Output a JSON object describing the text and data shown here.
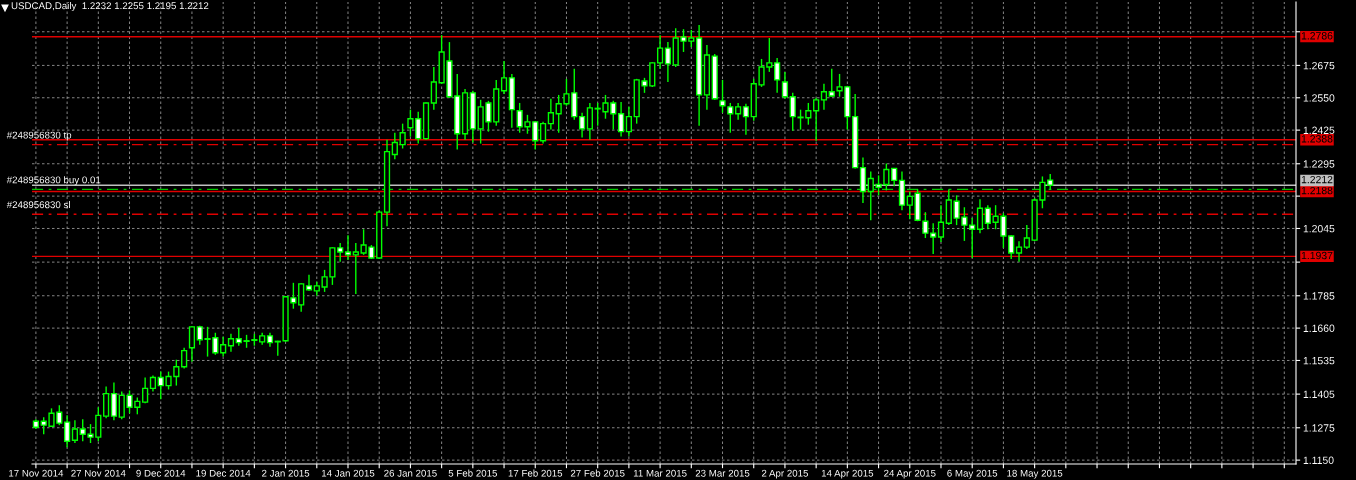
{
  "chart_data": {
    "type": "candlestick",
    "title": "USDCAD,Daily  1.2232 1.2255 1.2195 1.2212",
    "categories": [
      "17 Nov 2014",
      null,
      null,
      null,
      null,
      null,
      null,
      null,
      "27 Nov 2014",
      null,
      null,
      null,
      null,
      null,
      null,
      null,
      "9 Dec 2014",
      null,
      null,
      null,
      null,
      null,
      null,
      null,
      "19 Dec 2014",
      null,
      null,
      null,
      null,
      null,
      null,
      null,
      "2 Jan 2015",
      null,
      null,
      null,
      null,
      null,
      null,
      null,
      "14 Jan 2015",
      null,
      null,
      null,
      null,
      null,
      null,
      null,
      "26 Jan 2015",
      null,
      null,
      null,
      null,
      null,
      null,
      null,
      "5 Feb 2015",
      null,
      null,
      null,
      null,
      null,
      null,
      null,
      "17 Feb 2015",
      null,
      null,
      null,
      null,
      null,
      null,
      null,
      "27 Feb 2015",
      null,
      null,
      null,
      null,
      null,
      null,
      null,
      "11 Mar 2015",
      null,
      null,
      null,
      null,
      null,
      null,
      null,
      "23 Mar 2015",
      null,
      null,
      null,
      null,
      null,
      null,
      null,
      "2 Apr 2015",
      null,
      null,
      null,
      null,
      null,
      null,
      null,
      "14 Apr 2015",
      null,
      null,
      null,
      null,
      null,
      null,
      null,
      "24 Apr 2015",
      null,
      null,
      null,
      null,
      null,
      null,
      null,
      "6 May 2015",
      null,
      null,
      null,
      null,
      null,
      null,
      null,
      "18 May 2015",
      null,
      null,
      null,
      null,
      null,
      null,
      null,
      null,
      null,
      null,
      null,
      null,
      null,
      null,
      null,
      null,
      null,
      null,
      null,
      null,
      null,
      null,
      null,
      null,
      null,
      null,
      null,
      null,
      null,
      null,
      null,
      null,
      null
    ],
    "ohlc": [
      [
        1.13,
        1.1308,
        1.127,
        1.1277
      ],
      [
        1.13,
        1.1316,
        1.125,
        1.1285
      ],
      [
        1.1281,
        1.135,
        1.1279,
        1.1331
      ],
      [
        1.1335,
        1.1362,
        1.1285,
        1.1293
      ],
      [
        1.1297,
        1.1323,
        1.12,
        1.1223
      ],
      [
        1.1227,
        1.1304,
        1.1216,
        1.127
      ],
      [
        1.127,
        1.1308,
        1.1223,
        1.125
      ],
      [
        1.125,
        1.1289,
        1.1216,
        1.1239
      ],
      [
        1.1239,
        1.1354,
        1.1223,
        1.1323
      ],
      [
        1.132,
        1.1434,
        1.1312,
        1.1407
      ],
      [
        1.1407,
        1.145,
        1.1304,
        1.132
      ],
      [
        1.1316,
        1.1415,
        1.1308,
        1.14
      ],
      [
        1.14,
        1.1419,
        1.1331,
        1.1354
      ],
      [
        1.1354,
        1.1392,
        1.1327,
        1.1377
      ],
      [
        1.1374,
        1.1469,
        1.137,
        1.1427
      ],
      [
        1.1427,
        1.1477,
        1.1415,
        1.1469
      ],
      [
        1.1469,
        1.1492,
        1.1385,
        1.1438
      ],
      [
        1.1438,
        1.1492,
        1.1423,
        1.1473
      ],
      [
        1.1473,
        1.1538,
        1.1438,
        1.1511
      ],
      [
        1.1511,
        1.1584,
        1.1504,
        1.1573
      ],
      [
        1.1584,
        1.1667,
        1.153,
        1.1665
      ],
      [
        1.1665,
        1.1669,
        1.1596,
        1.1615
      ],
      [
        1.1619,
        1.1665,
        1.155,
        1.1617
      ],
      [
        1.1623,
        1.1642,
        1.1557,
        1.1565
      ],
      [
        1.1565,
        1.1627,
        1.155,
        1.1596
      ],
      [
        1.1592,
        1.1638,
        1.1569,
        1.1619
      ],
      [
        1.1619,
        1.1661,
        1.1592,
        1.1604
      ],
      [
        1.1611,
        1.1634,
        1.1584,
        1.1609
      ],
      [
        1.1615,
        1.1638,
        1.1592,
        1.1613
      ],
      [
        1.1607,
        1.1642,
        1.1596,
        1.163
      ],
      [
        1.163,
        1.1642,
        1.1588,
        1.1604
      ],
      [
        1.1609,
        1.1611,
        1.1553,
        1.1607
      ],
      [
        1.1611,
        1.1783,
        1.1607,
        1.1781
      ],
      [
        1.1777,
        1.1835,
        1.1735,
        1.1758
      ],
      [
        1.175,
        1.1833,
        1.1723,
        1.1831
      ],
      [
        1.1823,
        1.1866,
        1.1804,
        1.1808
      ],
      [
        1.1804,
        1.1839,
        1.1785,
        1.1823
      ],
      [
        1.1819,
        1.1885,
        1.18,
        1.1858
      ],
      [
        1.1858,
        1.1972,
        1.1827,
        1.197
      ],
      [
        1.197,
        1.1989,
        1.1916,
        1.1954
      ],
      [
        1.1954,
        1.2019,
        1.1923,
        1.1943
      ],
      [
        1.1943,
        1.1989,
        1.1792,
        1.1954
      ],
      [
        1.195,
        1.2042,
        1.1943,
        1.1981
      ],
      [
        1.1973,
        1.1981,
        1.1927,
        1.1931
      ],
      [
        1.1931,
        1.2115,
        1.1927,
        1.2108
      ],
      [
        1.2108,
        1.2388,
        1.2054,
        1.2342
      ],
      [
        1.2331,
        1.2415,
        1.2312,
        1.2377
      ],
      [
        1.2369,
        1.245,
        1.2354,
        1.2415
      ],
      [
        1.2434,
        1.2504,
        1.24,
        1.2469
      ],
      [
        1.2469,
        1.2496,
        1.2373,
        1.2392
      ],
      [
        1.2392,
        1.2532,
        1.2388,
        1.253
      ],
      [
        1.253,
        1.2669,
        1.2504,
        1.2611
      ],
      [
        1.2608,
        1.2792,
        1.2604,
        1.2727
      ],
      [
        1.2692,
        1.2765,
        1.255,
        1.2554
      ],
      [
        1.2557,
        1.2642,
        1.235,
        1.2411
      ],
      [
        1.2411,
        1.2584,
        1.2388,
        1.2569
      ],
      [
        1.2569,
        1.2577,
        1.2377,
        1.243
      ],
      [
        1.243,
        1.2542,
        1.2373,
        1.2515
      ],
      [
        1.253,
        1.2538,
        1.2419,
        1.2457
      ],
      [
        1.2457,
        1.2619,
        1.2442,
        1.2584
      ],
      [
        1.2577,
        1.2692,
        1.2565,
        1.2627
      ],
      [
        1.2627,
        1.2642,
        1.2434,
        1.2504
      ],
      [
        1.25,
        1.253,
        1.2415,
        1.2438
      ],
      [
        1.2438,
        1.2484,
        1.2411,
        1.2457
      ],
      [
        1.2457,
        1.2459,
        1.235,
        1.2384
      ],
      [
        1.2384,
        1.2457,
        1.2373,
        1.245
      ],
      [
        1.245,
        1.2546,
        1.2427,
        1.2492
      ],
      [
        1.2488,
        1.2561,
        1.2415,
        1.2527
      ],
      [
        1.2527,
        1.2623,
        1.2519,
        1.2565
      ],
      [
        1.2569,
        1.2662,
        1.2465,
        1.2477
      ],
      [
        1.2477,
        1.2492,
        1.2396,
        1.243
      ],
      [
        1.243,
        1.253,
        1.2388,
        1.2511
      ],
      [
        1.2509,
        1.253,
        1.2442,
        1.2507
      ],
      [
        1.2496,
        1.2561,
        1.2469,
        1.253
      ],
      [
        1.253,
        1.2538,
        1.2427,
        1.2488
      ],
      [
        1.2488,
        1.2534,
        1.24,
        1.2419
      ],
      [
        1.2419,
        1.2515,
        1.24,
        1.2477
      ],
      [
        1.2477,
        1.2623,
        1.245,
        1.2619
      ],
      [
        1.2615,
        1.2627,
        1.2569,
        1.2596
      ],
      [
        1.2596,
        1.2687,
        1.2592,
        1.2685
      ],
      [
        1.2685,
        1.2792,
        1.2662,
        1.2742
      ],
      [
        1.2742,
        1.2765,
        1.2611,
        1.2681
      ],
      [
        1.2677,
        1.2819,
        1.2669,
        1.2781
      ],
      [
        1.2785,
        1.2815,
        1.2727,
        1.2769
      ],
      [
        1.2769,
        1.2812,
        1.2746,
        1.2781
      ],
      [
        1.2781,
        1.2831,
        1.2442,
        1.2561
      ],
      [
        1.2561,
        1.2754,
        1.2504,
        1.2715
      ],
      [
        1.2711,
        1.2719,
        1.2542,
        1.2546
      ],
      [
        1.2538,
        1.2619,
        1.2492,
        1.2519
      ],
      [
        1.2515,
        1.253,
        1.2415,
        1.2488
      ],
      [
        1.2488,
        1.253,
        1.2465,
        1.2515
      ],
      [
        1.2515,
        1.2527,
        1.2407,
        1.2477
      ],
      [
        1.2477,
        1.2623,
        1.2461,
        1.2604
      ],
      [
        1.26,
        1.27,
        1.2592,
        1.2669
      ],
      [
        1.2669,
        1.2781,
        1.265,
        1.2685
      ],
      [
        1.2685,
        1.2704,
        1.2569,
        1.2619
      ],
      [
        1.2611,
        1.265,
        1.2546,
        1.2554
      ],
      [
        1.2554,
        1.2569,
        1.2423,
        1.2477
      ],
      [
        1.2475,
        1.2504,
        1.2427,
        1.2473
      ],
      [
        1.2473,
        1.253,
        1.2446,
        1.25
      ],
      [
        1.25,
        1.255,
        1.2384,
        1.2542
      ],
      [
        1.2542,
        1.2604,
        1.2504,
        1.2573
      ],
      [
        1.2573,
        1.2662,
        1.2554,
        1.2557
      ],
      [
        1.2577,
        1.2642,
        1.2554,
        1.2592
      ],
      [
        1.2592,
        1.2596,
        1.2427,
        1.2477
      ],
      [
        1.2477,
        1.2565,
        1.2277,
        1.228
      ],
      [
        1.228,
        1.2319,
        1.2143,
        1.2188
      ],
      [
        1.2188,
        1.2265,
        1.2077,
        1.2238
      ],
      [
        1.2215,
        1.225,
        1.2173,
        1.2204
      ],
      [
        1.2215,
        1.2296,
        1.2192,
        1.2273
      ],
      [
        1.2277,
        1.2279,
        1.2208,
        1.2231
      ],
      [
        1.2231,
        1.2265,
        1.2115,
        1.2135
      ],
      [
        1.2135,
        1.2188,
        1.2081,
        1.2169
      ],
      [
        1.2181,
        1.2196,
        1.2073,
        1.2077
      ],
      [
        1.2073,
        1.2108,
        1.2008,
        1.2027
      ],
      [
        1.2027,
        1.2065,
        1.1946,
        1.2012
      ],
      [
        1.2012,
        1.2135,
        1.1993,
        1.2069
      ],
      [
        1.2065,
        1.2196,
        1.2058,
        1.2155
      ],
      [
        1.215,
        1.2173,
        1.2058,
        1.2085
      ],
      [
        1.2089,
        1.2127,
        1.1997,
        1.2058
      ],
      [
        1.2058,
        1.2085,
        1.1931,
        1.2042
      ],
      [
        1.2042,
        1.2158,
        1.2027,
        1.2123
      ],
      [
        1.2123,
        1.2135,
        1.2042,
        1.2065
      ],
      [
        1.2069,
        1.2135,
        1.2042,
        1.2092
      ],
      [
        1.2092,
        1.2104,
        1.197,
        1.2016
      ],
      [
        1.2016,
        1.2019,
        1.1927,
        1.195
      ],
      [
        1.195,
        1.1996,
        1.1916,
        1.1973
      ],
      [
        1.1973,
        1.2058,
        1.1966,
        1.2008
      ],
      [
        1.2,
        1.2162,
        1.1996,
        1.2155
      ],
      [
        1.2155,
        1.2246,
        1.2123,
        1.2223
      ],
      [
        1.2232,
        1.2255,
        1.2195,
        1.2212
      ],
      null,
      null,
      null,
      null,
      null,
      null,
      null,
      null,
      null,
      null,
      null,
      null,
      null,
      null,
      null,
      null,
      null,
      null,
      null,
      null,
      null,
      null,
      null,
      null,
      null,
      null,
      null,
      null,
      null,
      null,
      null
    ],
    "color": "#00ff00",
    "colors": [
      "#ffffff",
      "#ffffff",
      "#000000",
      "#ffffff",
      "#ffffff",
      "#000000",
      "#ffffff",
      "#ffffff",
      "#000000",
      "#000000",
      "#ffffff",
      "#000000",
      "#ffffff",
      "#000000",
      "#000000",
      "#000000",
      "#ffffff",
      "#000000",
      "#000000",
      "#000000",
      "#000000",
      "#ffffff",
      "#ffffff",
      "#ffffff",
      "#000000",
      "#000000",
      "#ffffff",
      "#ffffff",
      "#ffffff",
      "#000000",
      "#ffffff",
      "#ffffff",
      "#000000",
      "#ffffff",
      "#000000",
      "#ffffff",
      "#000000",
      "#000000",
      "#000000",
      "#ffffff",
      "#ffffff",
      "#000000",
      "#000000",
      "#ffffff",
      "#000000",
      "#000000",
      "#000000",
      "#000000",
      "#000000",
      "#ffffff",
      "#000000",
      "#000000",
      "#000000",
      "#ffffff",
      "#ffffff",
      "#000000",
      "#ffffff",
      "#000000",
      "#ffffff",
      "#000000",
      "#000000",
      "#ffffff",
      "#ffffff",
      "#000000",
      "#ffffff",
      "#000000",
      "#000000",
      "#000000",
      "#000000",
      "#ffffff",
      "#ffffff",
      "#000000",
      "#ffffff",
      "#000000",
      "#ffffff",
      "#ffffff",
      "#000000",
      "#000000",
      "#ffffff",
      "#000000",
      "#000000",
      "#ffffff",
      "#000000",
      "#ffffff",
      "#000000",
      "#ffffff",
      "#000000",
      "#ffffff",
      "#ffffff",
      "#ffffff",
      "#000000",
      "#ffffff",
      "#000000",
      "#000000",
      "#000000",
      "#ffffff",
      "#ffffff",
      "#ffffff",
      "#ffffff",
      "#000000",
      "#000000",
      "#000000",
      "#ffffff",
      "#000000",
      "#ffffff",
      "#ffffff",
      "#ffffff",
      "#000000",
      "#ffffff",
      "#000000",
      "#ffffff",
      "#ffffff",
      "#000000",
      "#ffffff",
      "#ffffff",
      "#ffffff",
      "#000000",
      "#000000",
      "#ffffff",
      "#ffffff",
      "#ffffff",
      "#000000",
      "#ffffff",
      "#000000",
      "#ffffff",
      "#ffffff",
      "#000000",
      "#000000",
      "#000000",
      "#000000",
      "#ffffff",
      null,
      null,
      null,
      null,
      null,
      null,
      null,
      null,
      null,
      null,
      null,
      null,
      null,
      null,
      null,
      null,
      null,
      null,
      null,
      null,
      null,
      null,
      null,
      null,
      null,
      null,
      null,
      null,
      null,
      null,
      null
    ],
    "ylim": [
      1.1135,
      1.292
    ],
    "yticks": [
      {
        "value": 1.2805,
        "label": null
      },
      1.2675,
      {
        "value": 1.255,
        "label": "1.2550"
      },
      1.2425,
      1.2295,
      {
        "value": 1.217,
        "label": null
      },
      1.2045,
      {
        "value": 1.1915,
        "label": null
      },
      1.1785,
      {
        "value": 1.166,
        "label": "1.1660"
      },
      1.1535,
      1.1405,
      1.1275,
      {
        "value": 1.115,
        "label": "1.1150"
      }
    ],
    "grid": true,
    "ref_lines": [
      {
        "axis": "y",
        "value": 1.2786,
        "label": "1.2786",
        "color": "#e00000",
        "line_style": "solid"
      },
      {
        "axis": "y",
        "value": 1.2388,
        "label": "1.2388",
        "color": "#e00000",
        "line_style": "solid"
      },
      {
        "axis": "y",
        "value": 1.2212,
        "label": "1.2212",
        "color": "#c0c0c0",
        "line_style": "solid"
      },
      {
        "axis": "y",
        "value": 1.2188,
        "label": "1.2188",
        "color": "#e00000",
        "line_style": "solid"
      },
      {
        "axis": "y",
        "value": 1.1937,
        "label": "1.1937",
        "color": "#e00000",
        "line_style": "solid"
      },
      {
        "axis": "y",
        "value": 1.2369,
        "label": "#248956830 tp",
        "color": "#e00000",
        "line_style": "dashed"
      },
      {
        "axis": "y",
        "value": 1.2196,
        "label": "#248956830 buy 0.01",
        "color": "#00c800",
        "line_style": "dashed"
      },
      {
        "axis": "y",
        "value": 1.21,
        "label": "#248956830 sl",
        "color": "#e00000",
        "line_style": "dashed"
      }
    ]
  }
}
